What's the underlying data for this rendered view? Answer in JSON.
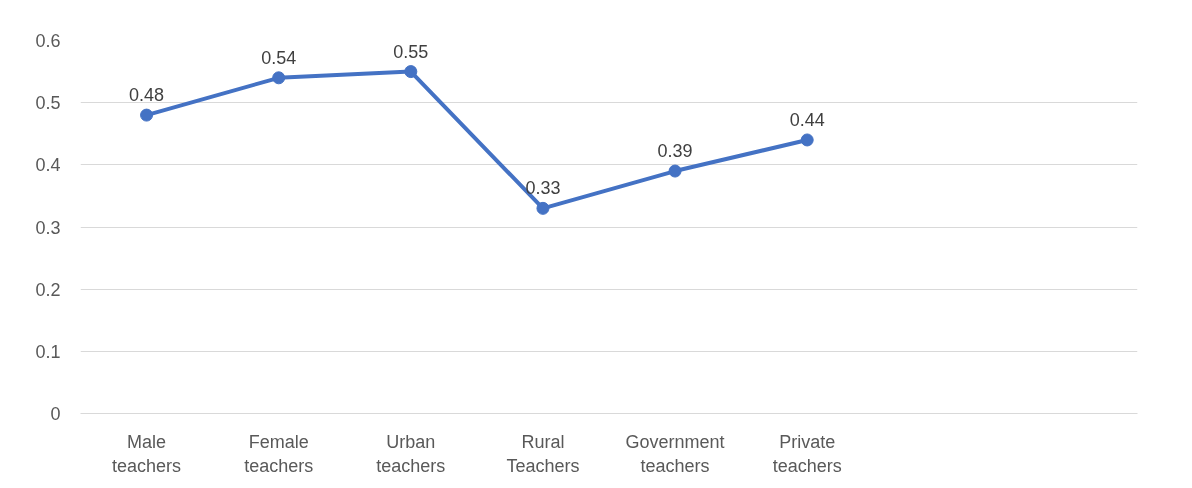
{
  "chart_data": {
    "type": "line",
    "categories": [
      "Male teachers",
      "Female teachers",
      "Urban teachers",
      "Rural Teachers",
      "Government teachers",
      "Private teachers",
      null,
      null
    ],
    "series": [
      {
        "color": "#4472c4",
        "values": [
          0.48,
          0.54,
          0.55,
          0.33,
          0.39,
          0.44,
          null,
          null
        ]
      }
    ],
    "ylim": [
      0,
      0.6
    ],
    "yticks": [
      0,
      0.1,
      0.2,
      0.3,
      0.4,
      0.5,
      0.6
    ],
    "grid": "y",
    "marker": "circle",
    "line_style": "solid",
    "data_labels": true
  }
}
